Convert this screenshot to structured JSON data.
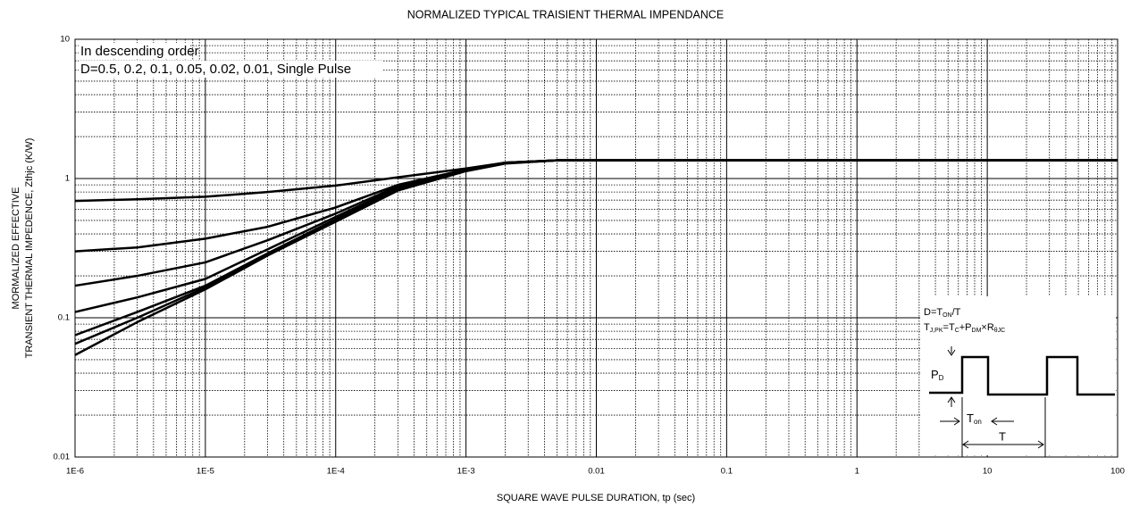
{
  "chart_data": {
    "type": "line",
    "title": "NORMALIZED TYPICAL TRAISIENT THERMAL IMPENDANCE",
    "x_label": "SQUARE WAVE PULSE DURATION,  tp (sec)",
    "y_label": [
      "MORMALIZED EFFECTIVE",
      "TRANSIENT THERMAL IMPEDENCE,  Zthjc (K/W)"
    ],
    "annotations": [
      "In descending order",
      "D=0.5, 0.2, 0.1, 0.05, 0.02, 0.01, Single Pulse"
    ],
    "inset": {
      "duty": [
        "D=T",
        "ON",
        "/T"
      ],
      "junction": [
        "T",
        "J,PK",
        "=T",
        "C",
        "+P",
        "DM",
        "×R",
        "θJC"
      ],
      "pd": [
        "P",
        "D"
      ],
      "ton": [
        "T",
        "on"
      ],
      "period": "T"
    },
    "x": [
      1e-06,
      3e-06,
      1e-05,
      3e-05,
      0.0001,
      0.0003,
      0.001,
      0.002,
      0.005,
      0.01,
      0.1,
      1,
      10,
      100
    ],
    "series": [
      {
        "color": "#000000",
        "values": [
          0.69,
          0.71,
          0.74,
          0.8,
          0.89,
          1.02,
          1.18,
          1.3,
          1.35,
          1.35,
          1.35,
          1.35,
          1.35,
          1.35
        ]
      },
      {
        "color": "#000000",
        "values": [
          0.3,
          0.32,
          0.37,
          0.45,
          0.62,
          0.9,
          1.16,
          1.3,
          1.35,
          1.35,
          1.35,
          1.35,
          1.35,
          1.35
        ]
      },
      {
        "color": "#000000",
        "values": [
          0.17,
          0.2,
          0.25,
          0.36,
          0.56,
          0.88,
          1.15,
          1.3,
          1.35,
          1.35,
          1.35,
          1.35,
          1.35,
          1.35
        ]
      },
      {
        "color": "#000000",
        "values": [
          0.11,
          0.14,
          0.19,
          0.31,
          0.53,
          0.86,
          1.15,
          1.29,
          1.35,
          1.35,
          1.35,
          1.35,
          1.35,
          1.35
        ]
      },
      {
        "color": "#000000",
        "values": [
          0.075,
          0.11,
          0.17,
          0.29,
          0.51,
          0.84,
          1.14,
          1.29,
          1.35,
          1.35,
          1.35,
          1.35,
          1.35,
          1.35
        ]
      },
      {
        "color": "#000000",
        "values": [
          0.065,
          0.1,
          0.165,
          0.285,
          0.5,
          0.83,
          1.14,
          1.29,
          1.35,
          1.35,
          1.35,
          1.35,
          1.35,
          1.35
        ]
      },
      {
        "color": "#000000",
        "values": [
          0.054,
          0.093,
          0.16,
          0.28,
          0.49,
          0.82,
          1.13,
          1.28,
          1.35,
          1.35,
          1.35,
          1.35,
          1.35,
          1.35
        ]
      }
    ],
    "log_x": true,
    "log_y": true,
    "grid": true,
    "xlim": [
      1e-06,
      100
    ],
    "xticks": [
      {
        "value": 1e-06,
        "label": "1E-6"
      },
      {
        "value": 1e-05,
        "label": "1E-5"
      },
      {
        "value": 0.0001,
        "label": "1E-4"
      },
      {
        "value": 0.001,
        "label": "1E-3"
      },
      0.01,
      0.1,
      1,
      10,
      100
    ],
    "ylim": [
      0.01,
      10
    ],
    "yticks": [
      0.01,
      0.1,
      1,
      10
    ]
  }
}
